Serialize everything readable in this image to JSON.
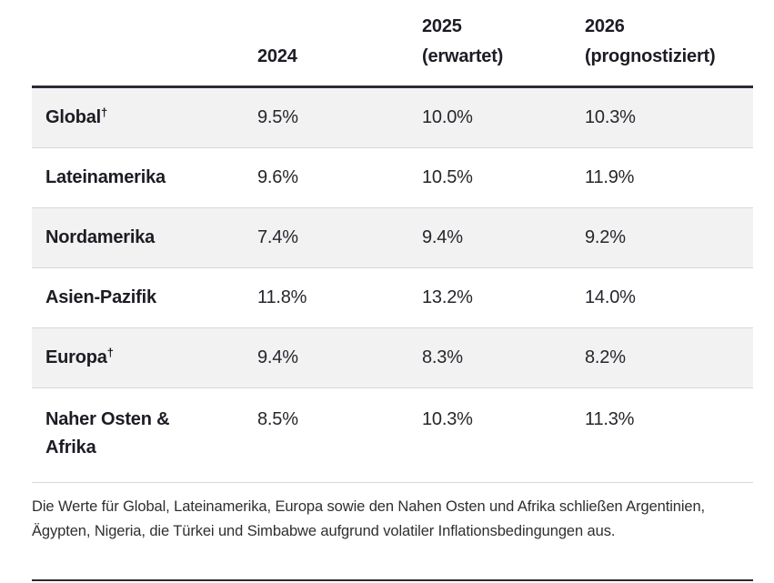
{
  "colors": {
    "row_alt_bg": "#f2f2f3",
    "dark_rule": "#2c2c35",
    "light_rule": "#d8d8d8",
    "heading_text": "#1c1c24",
    "value_text": "#26262c",
    "footnote_text": "#2f2f2f"
  },
  "header": {
    "col_2024": {
      "line1": "2024",
      "line2": ""
    },
    "col_2025": {
      "line1": "2025",
      "line2": "(erwartet)"
    },
    "col_2026": {
      "line1": "2026",
      "line2": "(prognostiziert)"
    }
  },
  "chart_data": {
    "type": "table",
    "columns": [
      "",
      "2024",
      "2025 (erwartet)",
      "2026 (prognostiziert)"
    ],
    "rows": [
      {
        "label": "Global",
        "dagger": "†",
        "values": [
          "9.5%",
          "10.0%",
          "10.3%"
        ]
      },
      {
        "label": "Lateinamerika",
        "dagger": "",
        "values": [
          "9.6%",
          "10.5%",
          "11.9%"
        ]
      },
      {
        "label": "Nordamerika",
        "dagger": "",
        "values": [
          "7.4%",
          "9.4%",
          "9.2%"
        ]
      },
      {
        "label": "Asien-Pazifik",
        "dagger": "",
        "values": [
          "11.8%",
          "13.2%",
          "14.0%"
        ]
      },
      {
        "label": "Europa",
        "dagger": "†",
        "values": [
          "9.4%",
          "8.3%",
          "8.2%"
        ]
      },
      {
        "label": "Naher Osten & Afrika",
        "dagger": "",
        "values": [
          "8.5%",
          "10.3%",
          "11.3%"
        ]
      }
    ]
  },
  "footnote": "Die Werte für Global, Lateinamerika, Europa sowie den Nahen Osten und Afrika schließen Argentinien, Ägypten, Nigeria, die Türkei und Simbabwe aufgrund volatiler Inflationsbedingungen aus."
}
